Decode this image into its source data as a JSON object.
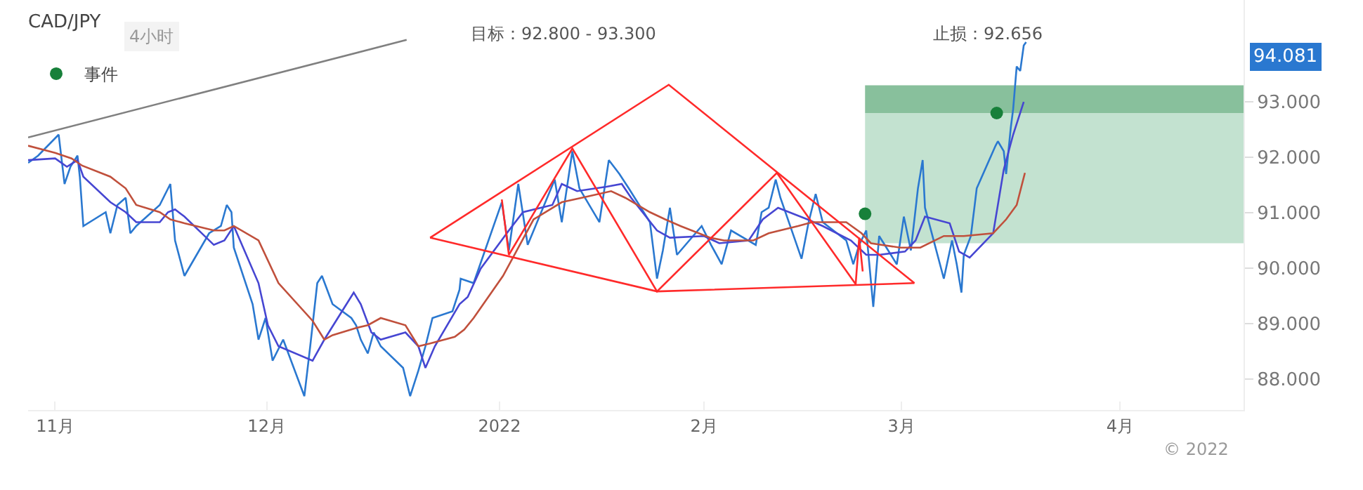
{
  "chart_data": {
    "type": "line",
    "title": "CAD/JPY",
    "subtitle": "4小时",
    "annotations": [
      "目标：92.800 - 93.300",
      "止损：92.656",
      "© 2022",
      "94.081"
    ],
    "legend": "top left",
    "bands": [
      {
        "axis": "y",
        "from": 92.8,
        "to": 93.3,
        "color": "#88c09c"
      },
      {
        "axis": "y",
        "from": 90.45,
        "to": 92.8,
        "color": "#c3e2d0"
      }
    ],
    "xlim": [
      "2021-10-28T04:00",
      "2022-04-18T12:00"
    ],
    "xticks": [
      {
        "value": "2021-11-01",
        "label": "11月"
      },
      {
        "value": "2021-12-01",
        "label": "12月"
      },
      {
        "value": "2022-01-03",
        "label": "2022"
      },
      {
        "value": "2022-02-01",
        "label": "2月"
      },
      {
        "value": "2022-03-01",
        "label": "3月"
      },
      {
        "value": "2022-04-01",
        "label": "4月"
      }
    ],
    "ylim": [
      87.44,
      94.84
    ],
    "yticks": [
      {
        "value": 88,
        "label": "88.000"
      },
      {
        "value": 89,
        "label": "89.000"
      },
      {
        "value": 90,
        "label": "90.000"
      },
      {
        "value": 91,
        "label": "91.000"
      },
      {
        "value": 92,
        "label": "92.000"
      },
      {
        "value": 93,
        "label": "93.000"
      }
    ],
    "series": [
      {
        "color": "#808080",
        "x": [
          "2021-10-28T04:00",
          "2021-12-20T20:00"
        ],
        "values": [
          92.36,
          94.12
        ]
      },
      {
        "color": "#2a78d0",
        "x": [
          "2021-10-28T04:00",
          "2021-10-29T14:00",
          "2021-11-01T12:00",
          "2021-11-02T08:00",
          "2021-11-03T04:00",
          "2021-11-04T04:00",
          "2021-11-04T12:00",
          "2021-11-05",
          "2021-11-08T04:00",
          "2021-11-08T20:00",
          "2021-11-09T20:00",
          "2021-11-11",
          "2021-11-11T16:00",
          "2021-11-12T12:00",
          "2021-11-15T20:00",
          "2021-11-17T08:00",
          "2021-11-18",
          "2021-11-19T08:00",
          "2021-11-22T20:00",
          "2021-11-24T12:00",
          "2021-11-25T08:00",
          "2021-11-26",
          "2021-11-26T08:00",
          "2021-11-29",
          "2021-11-29T20:00",
          "2021-11-30T20:00",
          "2021-12-01T20:00",
          "2021-12-03T08:00",
          "2021-12-06T08:00",
          "2021-12-07T04:00",
          "2021-12-08T04:00",
          "2021-12-08T20:00",
          "2021-12-10T08:00",
          "2021-12-13",
          "2021-12-13T16:00",
          "2021-12-14T08:00",
          "2021-12-15T08:00",
          "2021-12-16T04:00",
          "2021-12-17T04:00",
          "2021-12-20T08:00",
          "2021-12-21T08:00",
          "2021-12-22T12:00",
          "2021-12-23T12:00",
          "2021-12-24T12:00",
          "2021-12-27T08:00",
          "2021-12-28T08:00",
          "2021-12-28T12:00",
          "2021-12-30T08:00",
          "2022-01-03T08:00",
          "2022-01-04T08:00",
          "2022-01-05T16:00",
          "2022-01-07",
          "2022-01-10T20:00",
          "2022-01-11T20:00",
          "2022-01-13T08:00",
          "2022-01-14T08:00",
          "2022-01-17T04:00",
          "2022-01-18T12:00",
          "2022-01-20",
          "2022-01-21T08:00",
          "2022-01-24T08:00",
          "2022-01-25T08:00",
          "2022-01-26T04:00",
          "2022-01-27T04:00",
          "2022-01-28T04:00",
          "2022-01-31T16:00",
          "2022-02-02",
          "2022-02-03T12:00",
          "2022-02-04T20:00",
          "2022-02-08T08:00",
          "2022-02-09T04:00",
          "2022-02-10T04:00",
          "2022-02-11T04:00",
          "2022-02-11T20:00",
          "2022-02-14T20:00",
          "2022-02-15T20:00",
          "2022-02-16T20:00",
          "2022-02-17T20:00",
          "2022-02-21T04:00",
          "2022-02-22T04:00",
          "2022-02-23",
          "2022-02-24",
          "2022-02-25",
          "2022-02-25T20:00",
          "2022-02-28T08:00",
          "2022-03-01T08:00",
          "2022-03-02T08:00",
          "2022-03-03T08:00",
          "2022-03-04",
          "2022-03-04T08:00",
          "2022-03-07",
          "2022-03-08T04:00",
          "2022-03-08T20:00",
          "2022-03-09T12:00",
          "2022-03-09T20:00",
          "2022-03-10T20:00",
          "2022-03-11T08:00",
          "2022-03-11T16:00",
          "2022-03-14T08:00",
          "2022-03-14T16:00",
          "2022-03-15T12:00",
          "2022-03-15T20:00",
          "2022-03-16T12:00",
          "2022-03-16T20:00",
          "2022-03-17T08:00",
          "2022-03-17T20:00",
          "2022-03-18T08:00",
          "2022-03-18T16:00"
        ],
        "values": [
          91.9,
          92.03,
          92.41,
          91.52,
          91.83,
          92.03,
          91.65,
          90.76,
          91.01,
          90.63,
          91.14,
          91.27,
          90.63,
          90.76,
          91.14,
          91.52,
          90.5,
          89.86,
          90.63,
          90.76,
          91.14,
          91.01,
          90.37,
          89.35,
          88.71,
          89.1,
          88.33,
          88.71,
          87.69,
          88.59,
          89.73,
          89.86,
          89.35,
          89.1,
          88.97,
          88.71,
          88.46,
          88.84,
          88.59,
          88.2,
          87.69,
          88.15,
          88.59,
          89.1,
          89.22,
          89.61,
          89.81,
          89.73,
          91.19,
          90.32,
          91.52,
          90.42,
          91.6,
          90.83,
          92.11,
          91.44,
          90.83,
          91.95,
          91.7,
          91.44,
          90.83,
          89.81,
          90.32,
          91.09,
          90.24,
          90.76,
          90.42,
          90.07,
          90.68,
          90.42,
          91.01,
          91.09,
          91.6,
          91.27,
          90.17,
          90.83,
          91.34,
          90.83,
          90.5,
          90.07,
          90.42,
          90.68,
          89.3,
          90.58,
          90.07,
          90.93,
          90.32,
          91.44,
          91.95,
          91.09,
          89.81,
          90.5,
          90.07,
          89.56,
          90.24,
          90.58,
          91.09,
          91.44,
          92.21,
          92.29,
          92.11,
          91.7,
          92.54,
          92.87,
          93.64,
          93.56,
          94.02,
          94.081
        ]
      },
      {
        "color": "#4646d2",
        "x": [
          "2021-10-28T04:00",
          "2021-11-01",
          "2021-11-02T16:00",
          "2021-11-04T04:00",
          "2021-11-05",
          "2021-11-08T20:00",
          "2021-11-11",
          "2021-11-12T12:00",
          "2021-11-15T20:00",
          "2021-11-17",
          "2021-11-18",
          "2021-11-19T08:00",
          "2021-11-23T12:00",
          "2021-11-25",
          "2021-11-26T08:00",
          "2021-11-29T20:00",
          "2021-12-01T04:00",
          "2021-12-02T16:00",
          "2021-12-07T12:00",
          "2021-12-09T04:00",
          "2021-12-13T08:00",
          "2021-12-14T08:00",
          "2021-12-15T20:00",
          "2021-12-17T04:00",
          "2021-12-20T16:00",
          "2021-12-22T12:00",
          "2021-12-23T12:00",
          "2021-12-24T20:00",
          "2021-12-28T08:00",
          "2021-12-29T12:00",
          "2021-12-31T08:00",
          "2022-01-04T08:00",
          "2022-01-06T08:00",
          "2022-01-10T12:00",
          "2022-01-11T20:00",
          "2022-01-14",
          "2022-01-18T04:00",
          "2022-01-20T08:00",
          "2022-01-21T16:00",
          "2022-01-25T08:00",
          "2022-01-27T04:00",
          "2022-02-01",
          "2022-02-03T04:00",
          "2022-02-07T08:00",
          "2022-02-09T08:00",
          "2022-02-11T12:00",
          "2022-02-15T16:00",
          "2022-02-17T20:00",
          "2022-02-21T20:00",
          "2022-02-24",
          "2022-02-25T20:00",
          "2022-03-01T12:00",
          "2022-03-03",
          "2022-03-04T08:00",
          "2022-03-07T20:00",
          "2022-03-09T04:00",
          "2022-03-10T16:00",
          "2022-03-14",
          "2022-03-15T12:00",
          "2022-03-16T20:00",
          "2022-03-18T08:00"
        ],
        "values": [
          91.95,
          91.98,
          91.83,
          91.95,
          91.65,
          91.19,
          91.01,
          90.83,
          90.83,
          91.01,
          91.06,
          90.93,
          90.42,
          90.5,
          90.76,
          89.73,
          88.97,
          88.59,
          88.33,
          88.71,
          89.56,
          89.35,
          88.84,
          88.71,
          88.84,
          88.59,
          88.2,
          88.59,
          89.35,
          89.48,
          89.99,
          90.68,
          91.01,
          91.14,
          91.52,
          91.39,
          91.47,
          91.52,
          91.27,
          90.68,
          90.55,
          90.58,
          90.45,
          90.5,
          90.88,
          91.09,
          90.88,
          90.76,
          90.5,
          90.24,
          90.24,
          90.3,
          90.5,
          90.93,
          90.81,
          90.3,
          90.19,
          90.63,
          91.78,
          92.41,
          93.0
        ]
      },
      {
        "color": "#c0503c",
        "x": [
          "2021-10-28T04:00",
          "2021-11-01",
          "2021-11-03T08:00",
          "2021-11-04T20:00",
          "2021-11-08T20:00",
          "2021-11-11",
          "2021-11-12T12:00",
          "2021-11-15T20:00",
          "2021-11-17T08:00",
          "2021-11-19T08:00",
          "2021-11-23T12:00",
          "2021-11-25",
          "2021-11-26T08:00",
          "2021-11-29T20:00",
          "2021-12-02T16:00",
          "2021-12-07T12:00",
          "2021-12-09T04:00",
          "2021-12-10T08:00",
          "2021-12-13T16:00",
          "2021-12-15T08:00",
          "2021-12-17T04:00",
          "2021-12-20T16:00",
          "2021-12-22T12:00",
          "2021-12-24T04:00",
          "2021-12-27T16:00",
          "2021-12-29",
          "2021-12-30T08:00",
          "2022-01-03T12:00",
          "2022-01-05T16:00",
          "2022-01-07T20:00",
          "2022-01-11T20:00",
          "2022-01-14T16:00",
          "2022-01-18T20:00",
          "2022-01-20T20:00",
          "2022-01-24T08:00",
          "2022-01-26T12:00",
          "2022-01-28T16:00",
          "2022-02-01T20:00",
          "2022-02-03T20:00",
          "2022-02-08",
          "2022-02-10T04:00",
          "2022-02-14T08:00",
          "2022-02-16T08:00",
          "2022-02-21T04:00",
          "2022-02-23T08:00",
          "2022-02-24T16:00",
          "2022-02-28T20:00",
          "2022-03-03T16:00",
          "2022-03-07",
          "2022-03-09T20:00",
          "2022-03-14",
          "2022-03-15T20:00",
          "2022-03-17T08:00",
          "2022-03-18T12:00"
        ],
        "values": [
          92.21,
          92.08,
          91.98,
          91.85,
          91.65,
          91.44,
          91.14,
          91.01,
          90.88,
          90.81,
          90.68,
          90.68,
          90.76,
          90.5,
          89.73,
          89.05,
          88.71,
          88.79,
          88.92,
          88.97,
          89.1,
          88.97,
          88.59,
          88.64,
          88.76,
          88.89,
          89.1,
          89.86,
          90.37,
          90.88,
          91.19,
          91.27,
          91.39,
          91.27,
          91.01,
          90.88,
          90.76,
          90.55,
          90.5,
          90.5,
          90.63,
          90.76,
          90.83,
          90.83,
          90.63,
          90.45,
          90.37,
          90.37,
          90.58,
          90.58,
          90.63,
          90.88,
          91.14,
          91.72
        ]
      },
      {
        "color": "#ff2a2a",
        "x": [
          "2021-12-24T04:00",
          "2022-01-27",
          "2022-03-02T20:00"
        ],
        "values": [
          90.55,
          93.31,
          89.73
        ]
      },
      {
        "color": "#ff2a2a",
        "x": [
          "2021-12-24T04:00",
          "2022-01-25T08:00",
          "2022-03-02T20:00"
        ],
        "values": [
          90.55,
          89.58,
          89.73
        ]
      },
      {
        "color": "#ff2a2a",
        "x": [
          "2022-01-03T08:00",
          "2022-01-04T08:00",
          "2022-01-13T08:00",
          "2022-01-25T08:00",
          "2022-02-11T08:00",
          "2022-02-22T12:00",
          "2022-02-23",
          "2022-02-23T12:00"
        ],
        "values": [
          91.24,
          90.24,
          92.16,
          89.58,
          91.72,
          89.71,
          90.55,
          89.94
        ]
      },
      {
        "type": "scatter",
        "name": "事件",
        "color": "#17803a",
        "marker": "circle",
        "x": [
          "2022-02-23T20:00",
          "2022-03-14T12:00"
        ],
        "values": [
          90.98,
          92.8
        ]
      }
    ]
  }
}
